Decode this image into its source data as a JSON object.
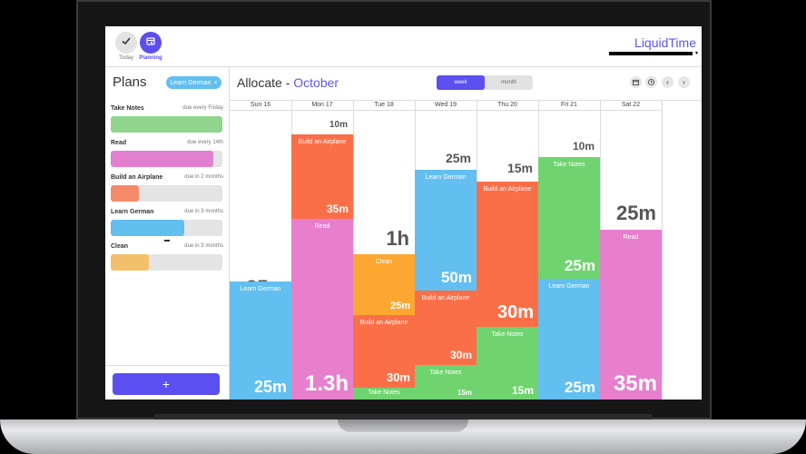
{
  "nav": {
    "today_label": "Today",
    "planning_label": "Planning"
  },
  "brand": {
    "name": "LiquidTime"
  },
  "sidebar": {
    "title": "Plans",
    "filter_chip": "Learn German",
    "filter_close": "×",
    "add_label": "+",
    "plans": [
      {
        "name": "Take Notes",
        "due": "due every Friday",
        "color": "#8fd58b",
        "progress": 1.0
      },
      {
        "name": "Read",
        "due": "due every 14th",
        "color": "#e37fcf",
        "progress": 0.92
      },
      {
        "name": "Build an Airplane",
        "due": "due in 2 months",
        "color": "#f58a6a",
        "progress": 0.25
      },
      {
        "name": "Learn German",
        "due": "due in 3 months",
        "color": "#62bff0",
        "progress": 0.66
      },
      {
        "name": "Clean",
        "due": "due in 3 months",
        "color": "#f2c06a",
        "progress": 0.34
      }
    ]
  },
  "main": {
    "title": "Allocate - ",
    "month": "October",
    "view_week": "week",
    "view_month": "month",
    "days": [
      {
        "label": "Sun 16",
        "free": "35m",
        "blocks": [
          {
            "name": "Learn German",
            "dur": "25m",
            "color": "#62bff0"
          }
        ]
      },
      {
        "label": "Mon 17",
        "free": "10m",
        "blocks": [
          {
            "name": "Build an Airplane",
            "dur": "35m",
            "color": "#fb6f48"
          },
          {
            "name": "Read",
            "dur": "1.3h",
            "color": "#e77fcd"
          }
        ]
      },
      {
        "label": "Tue 18",
        "free": "1h",
        "blocks": [
          {
            "name": "Clean",
            "dur": "25m",
            "color": "#fca732"
          },
          {
            "name": "Build an Airplane",
            "dur": "30m",
            "color": "#fb6f48"
          },
          {
            "name": "Take Notes",
            "dur": "",
            "color": "#6fd46f"
          }
        ]
      },
      {
        "label": "Wed 19",
        "free": "25m",
        "blocks": [
          {
            "name": "Learn German",
            "dur": "50m",
            "color": "#62bff0"
          },
          {
            "name": "Build an Airplane",
            "dur": "30m",
            "color": "#fb6f48"
          },
          {
            "name": "Take Notes",
            "dur": "15m",
            "color": "#6fd46f"
          }
        ]
      },
      {
        "label": "Thu 20",
        "free": "15m",
        "blocks": [
          {
            "name": "Build an Airplane",
            "dur": "30m",
            "color": "#fb6f48"
          },
          {
            "name": "Take Notes",
            "dur": "15m",
            "color": "#6fd46f"
          }
        ]
      },
      {
        "label": "Fri 21",
        "free": "10m",
        "blocks": [
          {
            "name": "Take Notes",
            "dur": "25m",
            "color": "#6fd46f"
          },
          {
            "name": "Learn German",
            "dur": "25m",
            "color": "#62bff0"
          }
        ]
      },
      {
        "label": "Sat 22",
        "free": "25m",
        "blocks": [
          {
            "name": "Read",
            "dur": "35m",
            "color": "#e77fcd"
          }
        ]
      }
    ]
  }
}
